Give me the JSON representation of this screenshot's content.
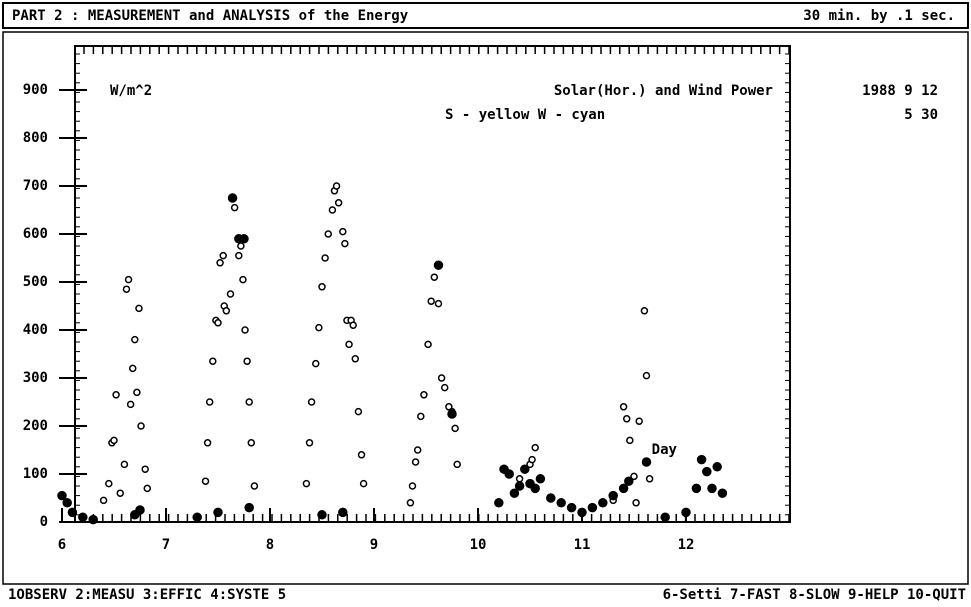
{
  "header": {
    "title": "PART 2  :  MEASUREMENT and ANALYSIS of the Energy",
    "rate": "30 min. by  .1 sec."
  },
  "chart_data": {
    "type": "scatter",
    "title": "Solar(Hor.) and Wind Power",
    "subtitle": "S - yellow  W - cyan",
    "y_label": "W/m^2",
    "annotation": {
      "text": "Day",
      "x": 11.67,
      "y": 150
    },
    "date": [
      "1988 9  12",
      "5  30"
    ],
    "xlim": [
      6,
      13
    ],
    "ylim": [
      0,
      1000
    ],
    "xticks": [
      6,
      7,
      8,
      9,
      10,
      11,
      12
    ],
    "yticks": [
      0,
      100,
      200,
      300,
      400,
      500,
      600,
      700,
      800,
      900
    ],
    "series": [
      {
        "name": "S",
        "color": "#000000",
        "marker": "open",
        "x": [
          6.4,
          6.45,
          6.48,
          6.5,
          6.52,
          6.56,
          6.6,
          6.62,
          6.64,
          6.66,
          6.68,
          6.7,
          6.72,
          6.74,
          6.76,
          6.8,
          6.82,
          7.38,
          7.4,
          7.42,
          7.45,
          7.48,
          7.5,
          7.52,
          7.55,
          7.56,
          7.58,
          7.62,
          7.66,
          7.7,
          7.72,
          7.74,
          7.76,
          7.78,
          7.8,
          7.82,
          7.85,
          8.35,
          8.38,
          8.4,
          8.44,
          8.47,
          8.5,
          8.53,
          8.56,
          8.6,
          8.62,
          8.64,
          8.66,
          8.7,
          8.72,
          8.74,
          8.76,
          8.78,
          8.8,
          8.82,
          8.85,
          8.88,
          8.9,
          9.35,
          9.37,
          9.4,
          9.42,
          9.45,
          9.48,
          9.52,
          9.55,
          9.58,
          9.62,
          9.65,
          9.68,
          9.72,
          9.75,
          9.78,
          9.8,
          10.4,
          10.5,
          10.52,
          10.55,
          11.3,
          11.4,
          11.43,
          11.46,
          11.5,
          11.52,
          11.55,
          11.6,
          11.62,
          11.65
        ],
        "values": [
          45,
          80,
          165,
          170,
          265,
          60,
          120,
          485,
          505,
          245,
          320,
          380,
          270,
          445,
          200,
          110,
          70,
          85,
          165,
          250,
          335,
          420,
          415,
          540,
          555,
          450,
          440,
          475,
          655,
          555,
          575,
          505,
          400,
          335,
          250,
          165,
          75,
          80,
          165,
          250,
          330,
          405,
          490,
          550,
          600,
          650,
          690,
          700,
          665,
          605,
          580,
          420,
          370,
          420,
          410,
          340,
          230,
          140,
          80,
          40,
          75,
          125,
          150,
          220,
          265,
          370,
          460,
          510,
          455,
          300,
          280,
          240,
          230,
          195,
          120,
          90,
          120,
          130,
          155,
          45,
          240,
          215,
          170,
          95,
          40,
          210,
          440,
          305,
          90
        ]
      },
      {
        "name": "W",
        "color": "#000000",
        "marker": "filled",
        "x": [
          6.0,
          6.05,
          6.1,
          6.2,
          6.3,
          6.7,
          6.75,
          7.3,
          7.5,
          7.64,
          7.7,
          7.75,
          7.8,
          8.5,
          8.7,
          9.62,
          9.75,
          10.2,
          10.25,
          10.3,
          10.35,
          10.4,
          10.45,
          10.5,
          10.55,
          10.6,
          10.7,
          10.8,
          10.9,
          11.0,
          11.1,
          11.2,
          11.3,
          11.4,
          11.45,
          11.62,
          11.8,
          12.0,
          12.1,
          12.15,
          12.2,
          12.25,
          12.3,
          12.35
        ],
        "values": [
          55,
          40,
          20,
          10,
          5,
          15,
          25,
          10,
          20,
          675,
          590,
          590,
          30,
          15,
          20,
          535,
          225,
          40,
          110,
          100,
          60,
          75,
          110,
          80,
          70,
          90,
          50,
          40,
          30,
          20,
          30,
          40,
          55,
          70,
          85,
          125,
          10,
          20,
          70,
          130,
          105,
          70,
          115,
          60
        ]
      }
    ]
  },
  "footer": {
    "items": [
      "1OBSERV 2:MEASU 3:EFFIC 4:SYSTE 5",
      "6-Setti 7-FAST  8-SLOW  9-HELP  10-QUIT"
    ]
  }
}
